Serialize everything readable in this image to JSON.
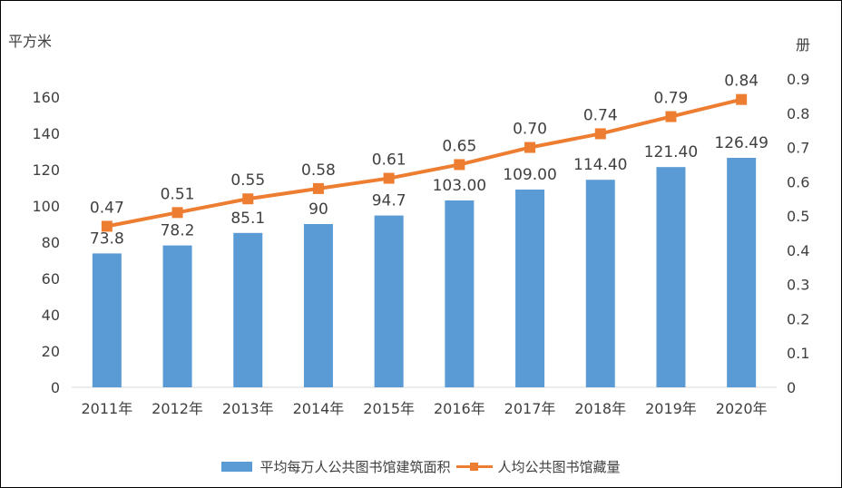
{
  "chart_data": {
    "type": "bar+line",
    "categories": [
      "2011年",
      "2012年",
      "2013年",
      "2014年",
      "2015年",
      "2016年",
      "2017年",
      "2018年",
      "2019年",
      "2020年"
    ],
    "series": [
      {
        "name": "平均每万人公共图书馆建筑面积",
        "type": "bar",
        "axis": "left",
        "values": [
          73.8,
          78.2,
          85.1,
          90,
          94.7,
          103.0,
          109.0,
          114.4,
          121.4,
          126.49
        ],
        "labels": [
          "73.8",
          "78.2",
          "85.1",
          "90",
          "94.7",
          "103.00",
          "109.00",
          "114.40",
          "121.40",
          "126.49"
        ],
        "color": "#5b9bd5"
      },
      {
        "name": "人均公共图书馆藏量",
        "type": "line",
        "axis": "right",
        "values": [
          0.47,
          0.51,
          0.55,
          0.58,
          0.61,
          0.65,
          0.7,
          0.74,
          0.79,
          0.84
        ],
        "labels": [
          "0.47",
          "0.51",
          "0.55",
          "0.58",
          "0.61",
          "0.65",
          "0.70",
          "0.74",
          "0.79",
          "0.84"
        ],
        "color": "#ed7d31"
      }
    ],
    "left_axis": {
      "unit": "平方米",
      "range": [
        0,
        160
      ],
      "ticks": [
        "0",
        "20",
        "40",
        "60",
        "80",
        "100",
        "120",
        "140",
        "160"
      ]
    },
    "right_axis": {
      "unit": "册",
      "range": [
        0,
        0.9
      ],
      "ticks": [
        "0",
        "0.1",
        "0.2",
        "0.3",
        "0.4",
        "0.5",
        "0.6",
        "0.7",
        "0.8",
        "0.9"
      ]
    },
    "legend_position": "bottom",
    "grid": false
  }
}
